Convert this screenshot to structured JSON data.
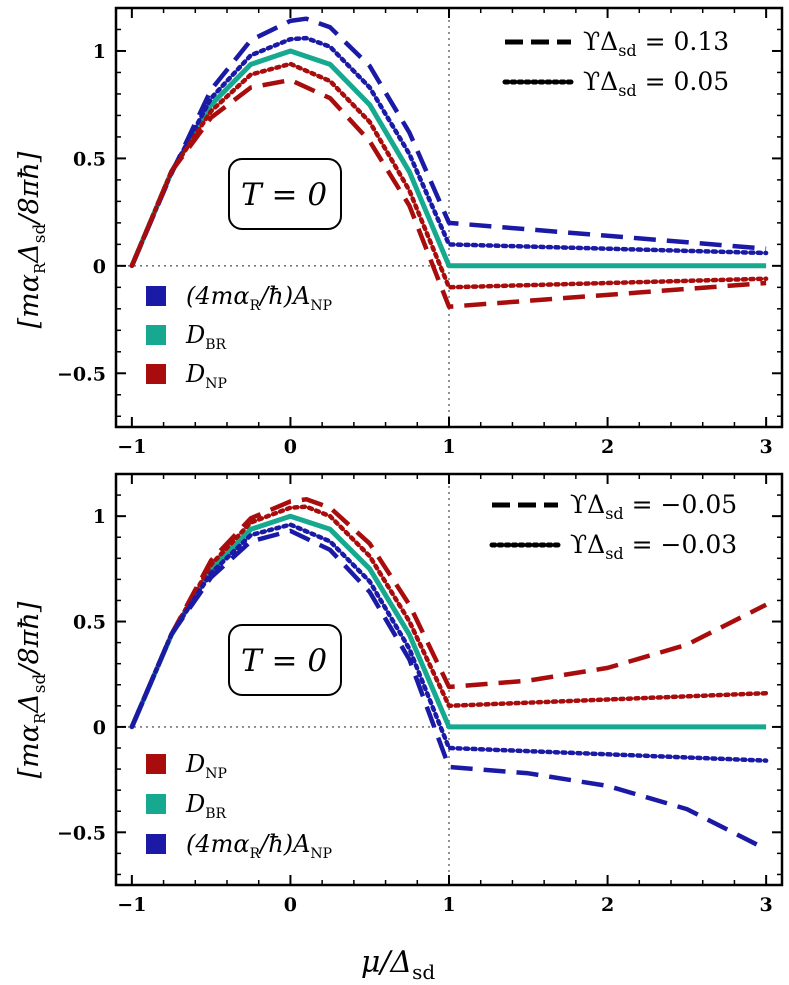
{
  "figure": {
    "xlabel": "μ/Δ",
    "xlabel_sub": "sd",
    "ylabel_parts": [
      "[mα",
      "R",
      "Δ",
      "sd",
      "/8πħ]"
    ]
  },
  "chart_data": [
    {
      "type": "line",
      "panel": "top",
      "annotation": "T = 0",
      "xlim": [
        -1.1,
        3.1
      ],
      "ylim": [
        -0.75,
        1.2
      ],
      "xticks": [
        -1,
        0,
        1,
        2,
        3
      ],
      "xtick_labels": [
        "−1",
        "0",
        "1",
        "2",
        "3"
      ],
      "yticks": [
        -0.5,
        0,
        0.5,
        1
      ],
      "ytick_labels": [
        "−0.5",
        "0",
        "0.5",
        "1"
      ],
      "vline_x": 1,
      "hline_y": 0,
      "style_legend": [
        {
          "style": "dashed",
          "label": "ϒΔ",
          "sub": "sd",
          "value": "= 0.13"
        },
        {
          "style": "dotted",
          "label": "ϒΔ",
          "sub": "sd",
          "value": "= 0.05"
        }
      ],
      "color_legend": [
        {
          "color": "#1a1aa6",
          "label": "(4mα",
          "sub": "R",
          "tail": "/ħ)A",
          "sub2": "NP"
        },
        {
          "color": "#17a98f",
          "label": "D",
          "sub": "BR",
          "tail": "",
          "sub2": ""
        },
        {
          "color": "#a80c0c",
          "label": "D",
          "sub": "NP",
          "tail": "",
          "sub2": ""
        }
      ],
      "series": [
        {
          "name": "D_BR",
          "color": "#17a98f",
          "style": "solid",
          "x": [
            -1,
            -0.75,
            -0.5,
            -0.25,
            0,
            0.25,
            0.5,
            0.75,
            1,
            3
          ],
          "y": [
            0,
            0.4375,
            0.75,
            0.9375,
            1.0,
            0.9375,
            0.75,
            0.4375,
            0,
            0
          ]
        },
        {
          "name": "A_NP ϒΔsd=0.13",
          "color": "#1a1aa6",
          "style": "dashed",
          "x": [
            -1,
            -0.75,
            -0.5,
            -0.25,
            0,
            0.1,
            0.25,
            0.5,
            0.75,
            1,
            3
          ],
          "y": [
            0,
            0.43,
            0.82,
            1.05,
            1.14,
            1.15,
            1.11,
            0.93,
            0.62,
            0.2,
            0.08
          ]
        },
        {
          "name": "A_NP ϒΔsd=0.05",
          "color": "#1a1aa6",
          "style": "dotted",
          "x": [
            -1,
            -0.75,
            -0.5,
            -0.25,
            0,
            0.1,
            0.25,
            0.5,
            0.75,
            1,
            3
          ],
          "y": [
            0,
            0.435,
            0.78,
            0.98,
            1.055,
            1.06,
            1.02,
            0.83,
            0.52,
            0.1,
            0.06
          ]
        },
        {
          "name": "D_NP ϒΔsd=0.05",
          "color": "#a80c0c",
          "style": "dotted",
          "x": [
            -1,
            -0.75,
            -0.5,
            -0.25,
            0,
            0.25,
            0.5,
            0.75,
            1,
            3
          ],
          "y": [
            0,
            0.44,
            0.72,
            0.89,
            0.94,
            0.86,
            0.67,
            0.35,
            -0.1,
            -0.06
          ]
        },
        {
          "name": "D_NP ϒΔsd=0.13",
          "color": "#a80c0c",
          "style": "dashed",
          "x": [
            -1,
            -0.75,
            -0.5,
            -0.25,
            0,
            0.25,
            0.5,
            0.75,
            1,
            3
          ],
          "y": [
            0,
            0.44,
            0.69,
            0.83,
            0.865,
            0.78,
            0.58,
            0.28,
            -0.19,
            -0.08
          ]
        }
      ]
    },
    {
      "type": "line",
      "panel": "bottom",
      "annotation": "T = 0",
      "xlim": [
        -1.1,
        3.1
      ],
      "ylim": [
        -0.75,
        1.2
      ],
      "xticks": [
        -1,
        0,
        1,
        2,
        3
      ],
      "xtick_labels": [
        "−1",
        "0",
        "1",
        "2",
        "3"
      ],
      "yticks": [
        -0.5,
        0,
        0.5,
        1
      ],
      "ytick_labels": [
        "−0.5",
        "0",
        "0.5",
        "1"
      ],
      "vline_x": 1,
      "hline_y": 0,
      "style_legend": [
        {
          "style": "dashed",
          "label": "ϒΔ",
          "sub": "sd",
          "value": "= −0.05"
        },
        {
          "style": "dotted",
          "label": "ϒΔ",
          "sub": "sd",
          "value": "= −0.03"
        }
      ],
      "color_legend": [
        {
          "color": "#a80c0c",
          "label": "D",
          "sub": "NP",
          "tail": "",
          "sub2": ""
        },
        {
          "color": "#17a98f",
          "label": "D",
          "sub": "BR",
          "tail": "",
          "sub2": ""
        },
        {
          "color": "#1a1aa6",
          "label": "(4mα",
          "sub": "R",
          "tail": "/ħ)A",
          "sub2": "NP"
        }
      ],
      "series": [
        {
          "name": "D_BR",
          "color": "#17a98f",
          "style": "solid",
          "x": [
            -1,
            -0.75,
            -0.5,
            -0.25,
            0,
            0.25,
            0.5,
            0.75,
            1,
            3
          ],
          "y": [
            0,
            0.4375,
            0.75,
            0.9375,
            1.0,
            0.9375,
            0.75,
            0.4375,
            0,
            0
          ]
        },
        {
          "name": "D_NP ϒΔsd=−0.05",
          "color": "#a80c0c",
          "style": "dashed",
          "x": [
            -1,
            -0.75,
            -0.5,
            -0.25,
            0,
            0.1,
            0.25,
            0.5,
            0.75,
            1,
            1.5,
            2,
            2.5,
            3
          ],
          "y": [
            0,
            0.44,
            0.79,
            0.99,
            1.07,
            1.08,
            1.04,
            0.87,
            0.58,
            0.19,
            0.22,
            0.28,
            0.39,
            0.58
          ]
        },
        {
          "name": "D_NP ϒΔsd=−0.03",
          "color": "#a80c0c",
          "style": "dotted",
          "x": [
            -1,
            -0.75,
            -0.5,
            -0.25,
            0,
            0.1,
            0.25,
            0.5,
            0.75,
            1,
            2,
            3
          ],
          "y": [
            0,
            0.44,
            0.77,
            0.97,
            1.04,
            1.045,
            1.0,
            0.81,
            0.5,
            0.1,
            0.13,
            0.16
          ]
        },
        {
          "name": "A_NP ϒΔsd=−0.03",
          "color": "#1a1aa6",
          "style": "dotted",
          "x": [
            -1,
            -0.75,
            -0.5,
            -0.25,
            0,
            0.25,
            0.5,
            0.75,
            1,
            2,
            3
          ],
          "y": [
            0,
            0.44,
            0.73,
            0.91,
            0.96,
            0.88,
            0.69,
            0.37,
            -0.1,
            -0.13,
            -0.16
          ]
        },
        {
          "name": "A_NP ϒΔsd=−0.05",
          "color": "#1a1aa6",
          "style": "dashed",
          "x": [
            -1,
            -0.75,
            -0.5,
            -0.25,
            0,
            0.25,
            0.5,
            0.75,
            1,
            1.5,
            2,
            2.5,
            3
          ],
          "y": [
            0,
            0.44,
            0.71,
            0.88,
            0.93,
            0.84,
            0.64,
            0.32,
            -0.19,
            -0.22,
            -0.28,
            -0.39,
            -0.58
          ]
        }
      ]
    }
  ]
}
